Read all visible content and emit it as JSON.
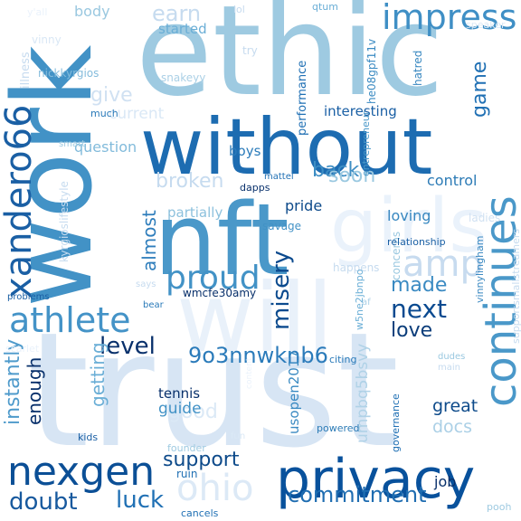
{
  "cloud": {
    "background": "#ffffff",
    "palette": "Blues",
    "words": [
      {
        "text": "trust",
        "color": "#d7e5f4"
      },
      {
        "text": "will",
        "color": "#e9f1fa"
      },
      {
        "text": "work",
        "color": "#4292c6"
      },
      {
        "text": "ethic",
        "color": "#9ecae1"
      },
      {
        "text": "without",
        "color": "#1d6cb1"
      },
      {
        "text": "nft",
        "color": "#4a98c9"
      },
      {
        "text": "girls",
        "color": "#eaf2fb"
      },
      {
        "text": "privacy",
        "color": "#08519c"
      },
      {
        "text": "nexgen",
        "color": "#0b4f96"
      },
      {
        "text": "athlete",
        "color": "#4493c7"
      },
      {
        "text": "continues",
        "color": "#4a98c9"
      },
      {
        "text": "impress",
        "color": "#3f8fc5"
      },
      {
        "text": "ohio",
        "color": "#dce9f6"
      },
      {
        "text": "xandero66",
        "color": "#1a5fa4"
      },
      {
        "text": "amp",
        "color": "#c7dbef"
      },
      {
        "text": "proud",
        "color": "#4292c6"
      },
      {
        "text": "commitment",
        "color": "#1f6db1"
      },
      {
        "text": "9o3nnwknb6",
        "color": "#2b7bba"
      },
      {
        "text": "level",
        "color": "#08306b"
      },
      {
        "text": "misery",
        "color": "#0b4a8e"
      },
      {
        "text": "next",
        "color": "#0a4a90"
      },
      {
        "text": "doubt",
        "color": "#17599e"
      },
      {
        "text": "luck",
        "color": "#2070b4"
      },
      {
        "text": "support",
        "color": "#0d4a8a"
      },
      {
        "text": "made",
        "color": "#3a8ac2"
      },
      {
        "text": "love",
        "color": "#0b3d7a"
      },
      {
        "text": "back",
        "color": "#3e8ec4"
      },
      {
        "text": "game",
        "color": "#2070b4"
      },
      {
        "text": "earn",
        "color": "#c6dbef"
      },
      {
        "text": "soon",
        "color": "#9ac8e0"
      },
      {
        "text": "give",
        "color": "#d0e1f2"
      },
      {
        "text": "broken",
        "color": "#c6dbef"
      },
      {
        "text": "almost",
        "color": "#2f7ebc"
      },
      {
        "text": "instantly",
        "color": "#4e9acb"
      },
      {
        "text": "enough",
        "color": "#08306b"
      },
      {
        "text": "getting",
        "color": "#6aaed6"
      },
      {
        "text": "good",
        "color": "#dbe9f6"
      },
      {
        "text": "great",
        "color": "#0d4a8a"
      },
      {
        "text": "docs",
        "color": "#abd0e6"
      },
      {
        "text": "guide",
        "color": "#4292c6"
      },
      {
        "text": "tennis",
        "color": "#08306b"
      },
      {
        "text": "usopen2017",
        "color": "#3a8ac2"
      },
      {
        "text": "umpbq5bsvy",
        "color": "#b0d2e7"
      },
      {
        "text": "loving",
        "color": "#3787c0"
      },
      {
        "text": "control",
        "color": "#2c7bb6"
      },
      {
        "text": "pride",
        "color": "#0d4a8a"
      },
      {
        "text": "partially",
        "color": "#8dc1dd"
      },
      {
        "text": "boys",
        "color": "#2b7bba"
      },
      {
        "text": "question",
        "color": "#82bbdb"
      },
      {
        "text": "current",
        "color": "#dae8f6"
      },
      {
        "text": "interesting",
        "color": "#1a5fa4"
      },
      {
        "text": "performance",
        "color": "#2070b4"
      },
      {
        "text": "kyrgioslifestyle",
        "color": "#c6dbef"
      },
      {
        "text": "body",
        "color": "#9ac8e0"
      },
      {
        "text": "started",
        "color": "#6aaed6"
      },
      {
        "text": "illness",
        "color": "#c6dbef"
      },
      {
        "text": "vinny",
        "color": "#d9e7f5"
      },
      {
        "text": "nickkyrgios",
        "color": "#85bcdc"
      },
      {
        "text": "snakeyy",
        "color": "#abd0e6"
      },
      {
        "text": "much",
        "color": "#2a7ab9"
      },
      {
        "text": "he08gpf11v",
        "color": "#3a8ac2"
      },
      {
        "text": "hatred",
        "color": "#3787c0"
      },
      {
        "text": "entrepreneur",
        "color": "#4a98c9"
      },
      {
        "text": "qtum",
        "color": "#6aaed6"
      },
      {
        "text": "lol",
        "color": "#c6dbef"
      },
      {
        "text": "try",
        "color": "#c6dbef"
      },
      {
        "text": "speaker",
        "color": "#dbe9f6"
      },
      {
        "text": "y'all",
        "color": "#eaf2fb"
      },
      {
        "text": "supportsmallstreamers",
        "color": "#c6dbef"
      },
      {
        "text": "smart",
        "color": "#9ecae1"
      },
      {
        "text": "mattel",
        "color": "#2070b4"
      },
      {
        "text": "dapps",
        "color": "#08306b"
      },
      {
        "text": "savage",
        "color": "#4292c6"
      },
      {
        "text": "concerns",
        "color": "#9ac8e0"
      },
      {
        "text": "ladies",
        "color": "#d0e1f2"
      },
      {
        "text": "relationship",
        "color": "#1a5fa4"
      },
      {
        "text": "vinnylingham",
        "color": "#3787c0"
      },
      {
        "text": "happens",
        "color": "#c6dbef"
      },
      {
        "text": "wmcfe30amy",
        "color": "#08306b"
      },
      {
        "text": "w5ne2jbnpo",
        "color": "#6aaed6"
      },
      {
        "text": "says",
        "color": "#c6dbef"
      },
      {
        "text": "af",
        "color": "#abd0e6"
      },
      {
        "text": "problems",
        "color": "#1a5fa4"
      },
      {
        "text": "bear",
        "color": "#2a7ab9"
      },
      {
        "text": "citing",
        "color": "#2a7ab9"
      },
      {
        "text": "dudes",
        "color": "#9ac8e0"
      },
      {
        "text": "main",
        "color": "#c6dbef"
      },
      {
        "text": "kids",
        "color": "#1a5fa4"
      },
      {
        "text": "fun",
        "color": "#dbe9f6"
      },
      {
        "text": "powered",
        "color": "#2c7bb6"
      },
      {
        "text": "governance",
        "color": "#2070b4"
      },
      {
        "text": "founder",
        "color": "#9ecae1"
      },
      {
        "text": "ruin",
        "color": "#2070b4"
      },
      {
        "text": "job",
        "color": "#08306b"
      },
      {
        "text": "pooh",
        "color": "#9ecae1"
      },
      {
        "text": "cancels",
        "color": "#2070b4"
      },
      {
        "text": "scarlet",
        "color": "#eaf2fb"
      },
      {
        "text": "content",
        "color": "#eaf2fb"
      }
    ]
  }
}
